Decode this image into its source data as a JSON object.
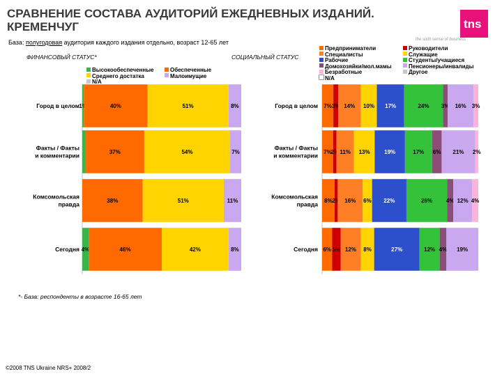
{
  "header": {
    "title_line1": "СРАВНЕНИЕ СОСТАВА АУДИТОРИЙ ЕЖЕДНЕВНЫХ ИЗДАНИЙ.",
    "title_line2": "КРЕМЕНЧУГ",
    "logo_text": "tns",
    "tagline": "the sixth sense of business"
  },
  "base_note": {
    "prefix": "База: ",
    "underlined": "полугодовая",
    "rest": " аудитория каждого издания отдельно, возраст 12-65 лет"
  },
  "footnote": "*- База: респонденты в возрасте 16-65 лет",
  "copyright": "©2008 TNS Ukraine NRS+ 2008/2",
  "colors": {
    "brand": "#e8107a",
    "high": "#3cb44b",
    "medium": "#ffd400",
    "wealthy": "#ff6a00",
    "na": "#c8c8c8",
    "low": "#c9a8f0"
  },
  "chart_data": [
    {
      "type": "bar",
      "orientation": "horizontal",
      "stacked": true,
      "percent": true,
      "title": "ФИНАНСОВЫЙ СТАТУС*",
      "categories": [
        "Город в целом",
        "Факты / Факты и комментарии",
        "Комсомольская правда",
        "Сегодня"
      ],
      "category_lines": [
        [
          "Город в целом"
        ],
        [
          "Факты / Факты",
          "и комментарии"
        ],
        [
          "Комсомольская",
          "правда"
        ],
        [
          "Сегодня"
        ]
      ],
      "series": [
        {
          "name": "Высокообеспеченные",
          "color": "#3cb44b",
          "values": [
            1,
            2,
            0,
            4
          ],
          "labels": [
            "1%",
            "",
            "",
            "4%"
          ]
        },
        {
          "name": "Обеспеченные",
          "color": "#ff6a00",
          "values": [
            40,
            37,
            38,
            46
          ],
          "labels": [
            "40%",
            "37%",
            "38%",
            "46%"
          ]
        },
        {
          "name": "Среднего достатка",
          "color": "#ffd400",
          "values": [
            51,
            54,
            51,
            42
          ],
          "labels": [
            "51%",
            "54%",
            "51%",
            "42%"
          ]
        },
        {
          "name": "Малоимущие",
          "color": "#c9a8f0",
          "values": [
            8,
            7,
            11,
            8
          ],
          "labels": [
            "8%",
            "7%",
            "11%",
            "8%"
          ]
        },
        {
          "name": "N/A",
          "color": "#c8c8c8",
          "values": [
            0,
            0,
            0,
            0
          ],
          "labels": [
            "",
            "",
            "",
            ""
          ]
        }
      ],
      "legend": [
        {
          "name": "Высокообеспеченные",
          "color": "#3cb44b"
        },
        {
          "name": "Обеспеченные",
          "color": "#ff6a00"
        },
        {
          "name": "Среднего достатка",
          "color": "#ffd400"
        },
        {
          "name": "Малоимущие",
          "color": "#c9a8f0"
        },
        {
          "name": "N/A",
          "color": "#c8c8c8"
        }
      ],
      "legend_columns": 2,
      "legend_position": "top"
    },
    {
      "type": "bar",
      "orientation": "horizontal",
      "stacked": true,
      "percent": true,
      "title": "СОЦИАЛЬНЫЙ СТАТУС",
      "categories": [
        "Город в целом",
        "Факты / Факты и комментарии",
        "Комсомольская правда",
        "Сегодня"
      ],
      "category_lines": [
        [
          "Город в целом"
        ],
        [
          "Факты / Факты",
          "и комментарии"
        ],
        [
          "Комсомольская",
          "правда"
        ],
        [
          "Сегодня"
        ]
      ],
      "series": [
        {
          "name": "Предприниматели",
          "color": "#ff6a00",
          "values": [
            7,
            7,
            8,
            6
          ],
          "labels": [
            "7%",
            "7%",
            "8%",
            "6%"
          ]
        },
        {
          "name": "Руководители",
          "color": "#cc0000",
          "values": [
            3,
            2,
            2,
            5
          ],
          "labels": [
            "3%",
            "2%",
            "2%",
            "5%"
          ]
        },
        {
          "name": "Специалисты",
          "color": "#ff7f27",
          "values": [
            14,
            11,
            16,
            12
          ],
          "labels": [
            "14%",
            "11%",
            "16%",
            "12%"
          ]
        },
        {
          "name": "Служащие",
          "color": "#ffd400",
          "values": [
            10,
            13,
            6,
            8
          ],
          "labels": [
            "10%",
            "13%",
            "6%",
            "8%"
          ]
        },
        {
          "name": "Рабочие",
          "color": "#2e4fcc",
          "values": [
            17,
            19,
            22,
            27
          ],
          "labels": [
            "17%",
            "19%",
            "22%",
            "27%"
          ]
        },
        {
          "name": "Студенты/учащиеся",
          "color": "#33c23a",
          "values": [
            24,
            17,
            26,
            12
          ],
          "labels": [
            "24%",
            "17%",
            "26%",
            "12%"
          ]
        },
        {
          "name": "Домохозяйки/мол.мамы",
          "color": "#8a4e78",
          "values": [
            3,
            6,
            4,
            4
          ],
          "labels": [
            "3%",
            "6%",
            "4%",
            "4%"
          ]
        },
        {
          "name": "Пенсионеры/инвалиды",
          "color": "#c9a8f0",
          "values": [
            16,
            21,
            12,
            19
          ],
          "labels": [
            "16%",
            "21%",
            "12%",
            "19%"
          ]
        },
        {
          "name": "Безработные",
          "color": "#ffb3d9",
          "values": [
            3,
            2,
            4,
            0
          ],
          "labels": [
            "3%",
            "2%",
            "4%",
            ""
          ]
        },
        {
          "name": "Другое",
          "color": "#c8c8c8",
          "values": [
            0,
            0,
            0,
            0
          ],
          "labels": [
            "",
            "",
            "",
            ""
          ]
        },
        {
          "name": "N/A",
          "color": "#ffffff",
          "values": [
            0,
            0,
            0,
            0
          ],
          "labels": [
            "",
            "",
            "",
            ""
          ]
        }
      ],
      "legend": [
        {
          "name": "Предприниматели",
          "color": "#ff6a00"
        },
        {
          "name": "Руководители",
          "color": "#cc0000"
        },
        {
          "name": "Специалисты",
          "color": "#ff7f27"
        },
        {
          "name": "Служащие",
          "color": "#ffd400"
        },
        {
          "name": "Рабочие",
          "color": "#2e4fcc"
        },
        {
          "name": "Студенты/учащиеся",
          "color": "#33c23a"
        },
        {
          "name": "Домохозяйки/мол.мамы",
          "color": "#8a4e78"
        },
        {
          "name": "Пенсионеры/инвалиды",
          "color": "#c9a8f0"
        },
        {
          "name": "Безработные",
          "color": "#ffb3d9"
        },
        {
          "name": "Другое",
          "color": "#c8c8c8"
        },
        {
          "name": "N/A",
          "color": "#ffffff"
        }
      ],
      "legend_columns": 2,
      "legend_position": "top-right"
    }
  ]
}
